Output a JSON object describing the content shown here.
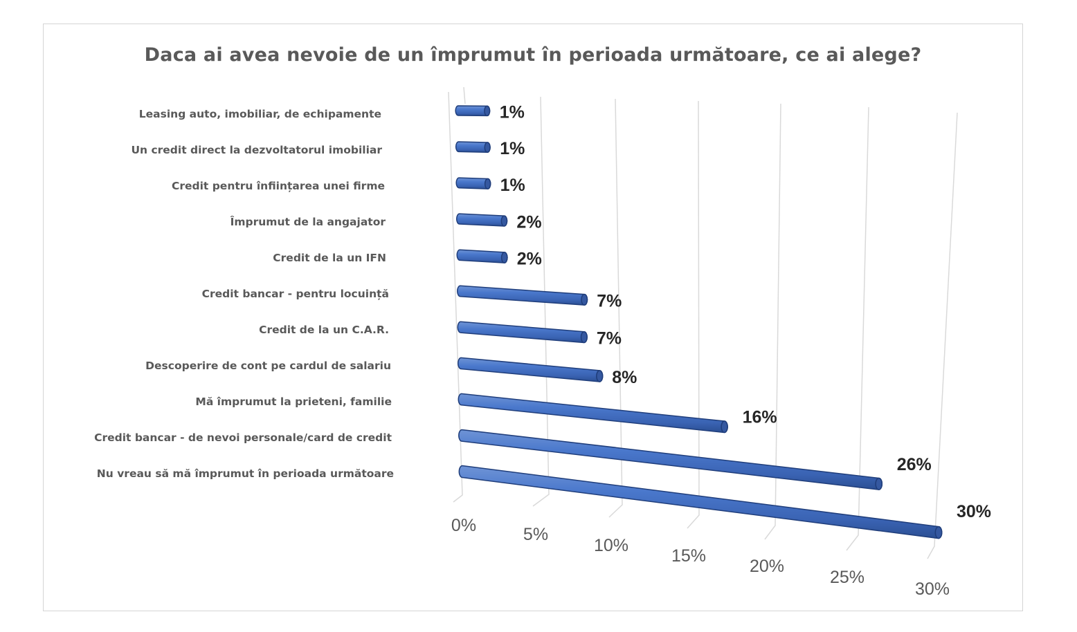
{
  "chart_data": {
    "type": "bar",
    "orientation": "horizontal",
    "style": "3d-cylinder",
    "title": "Daca ai avea nevoie de un împrumut în perioada următoare, ce ai alege?",
    "categories": [
      "Leasing auto, imobiliar, de echipamente",
      "Un credit direct la dezvoltatorul imobiliar",
      "Credit pentru înființarea unei firme",
      "Împrumut de la angajator",
      "Credit de la un IFN",
      "Credit bancar - pentru locuință",
      "Credit de la un C.A.R.",
      "Descoperire de cont pe cardul de salariu",
      "Mă împrumut la prieteni, familie",
      "Credit bancar - de nevoi personale/card de credit",
      "Nu vreau să mă împrumut în perioada următoare"
    ],
    "values": [
      1,
      1,
      1,
      2,
      2,
      7,
      7,
      8,
      16,
      26,
      30
    ],
    "value_unit": "%",
    "data_labels": [
      "1%",
      "1%",
      "1%",
      "2%",
      "2%",
      "7%",
      "7%",
      "8%",
      "16%",
      "26%",
      "30%"
    ],
    "x_ticks": [
      "0%",
      "5%",
      "10%",
      "15%",
      "20%",
      "25%",
      "30%"
    ],
    "x_tick_values": [
      0,
      5,
      10,
      15,
      20,
      25,
      30
    ],
    "xlim": [
      0,
      30
    ],
    "bar_color": "#4472c4",
    "bar_edge_color": "#1f3d7a",
    "grid": true,
    "legend": "none"
  }
}
